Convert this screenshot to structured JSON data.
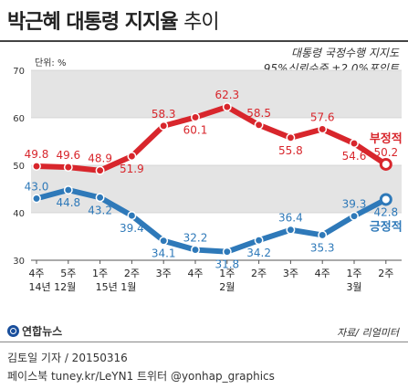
{
  "chart_data": {
    "type": "line",
    "title_main": "박근혜 대통령 지지율",
    "title_trend": "추이",
    "subtitle_line1": "대통령 국정수행 지지도",
    "subtitle_line2": "95%신뢰수준 ±2.0%포인트",
    "unit_label": "단위: %",
    "ylim": [
      30,
      70
    ],
    "yticks": [
      "30",
      "40",
      "50",
      "60",
      "70"
    ],
    "grid": "alternating horizontal bands",
    "x_week_labels": [
      "4주",
      "5주",
      "1주",
      "2주",
      "3주",
      "4주",
      "1주",
      "2주",
      "3주",
      "4주",
      "1주",
      "2주"
    ],
    "x_month_labels": [
      {
        "index": 0.5,
        "label": "14년 12월"
      },
      {
        "index": 2.5,
        "label": "15년 1월"
      },
      {
        "index": 6,
        "label": "2월"
      },
      {
        "index": 10,
        "label": "3월"
      }
    ],
    "series": [
      {
        "name": "부정적",
        "color": "#d8262c",
        "values": [
          49.8,
          49.6,
          48.9,
          51.9,
          58.3,
          60.1,
          62.3,
          58.5,
          55.8,
          57.6,
          54.6,
          50.2
        ],
        "label_pos": [
          "above",
          "above",
          "above",
          "below",
          "above",
          "below",
          "above",
          "above",
          "below",
          "above",
          "below",
          "above"
        ]
      },
      {
        "name": "긍정적",
        "color": "#2e79b9",
        "values": [
          43.0,
          44.8,
          43.2,
          39.4,
          34.1,
          32.2,
          31.8,
          34.2,
          36.4,
          35.3,
          39.3,
          42.8
        ],
        "label_pos": [
          "above",
          "below",
          "below",
          "below",
          "below",
          "above",
          "below",
          "below",
          "above",
          "below",
          "above",
          "below"
        ]
      }
    ],
    "source": "자료/ 리얼미터"
  },
  "branding": {
    "logo_text": "연합뉴스"
  },
  "credit": {
    "line1": "김토일 기자 / 20150316",
    "line2": "페이스북 tuney.kr/LeYN1 트위터 @yonhap_graphics"
  }
}
